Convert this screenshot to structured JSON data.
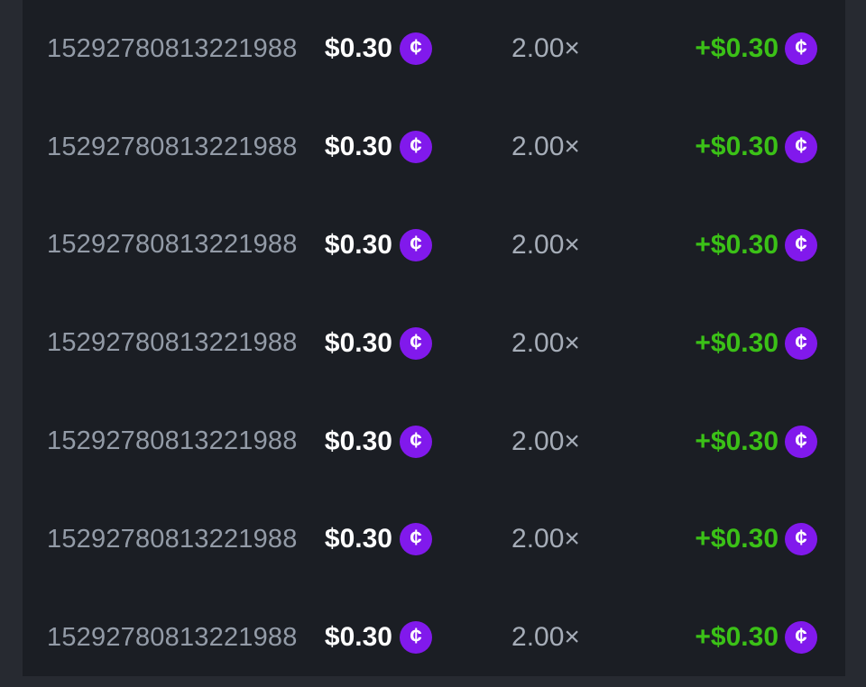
{
  "colors": {
    "page_background": "#272A31",
    "table_background": "#1B1E24",
    "id_text": "#939BA7",
    "multiplier_text": "#A6ADB8",
    "bet_text": "#FFFFFF",
    "payout_text": "#3BC117",
    "coin_background": "#8119EC",
    "coin_glyph_color": "#FFFFFF"
  },
  "coin": {
    "glyph": "¢",
    "icon_name": "cent-coin-icon"
  },
  "bets": {
    "rows": [
      {
        "id": "15292780813221988",
        "bet_amount": "$0.30",
        "multiplier": "2.00×",
        "payout": "+$0.30"
      },
      {
        "id": "15292780813221988",
        "bet_amount": "$0.30",
        "multiplier": "2.00×",
        "payout": "+$0.30"
      },
      {
        "id": "15292780813221988",
        "bet_amount": "$0.30",
        "multiplier": "2.00×",
        "payout": "+$0.30"
      },
      {
        "id": "15292780813221988",
        "bet_amount": "$0.30",
        "multiplier": "2.00×",
        "payout": "+$0.30"
      },
      {
        "id": "15292780813221988",
        "bet_amount": "$0.30",
        "multiplier": "2.00×",
        "payout": "+$0.30"
      },
      {
        "id": "15292780813221988",
        "bet_amount": "$0.30",
        "multiplier": "2.00×",
        "payout": "+$0.30"
      },
      {
        "id": "15292780813221988",
        "bet_amount": "$0.30",
        "multiplier": "2.00×",
        "payout": "+$0.30"
      }
    ]
  }
}
